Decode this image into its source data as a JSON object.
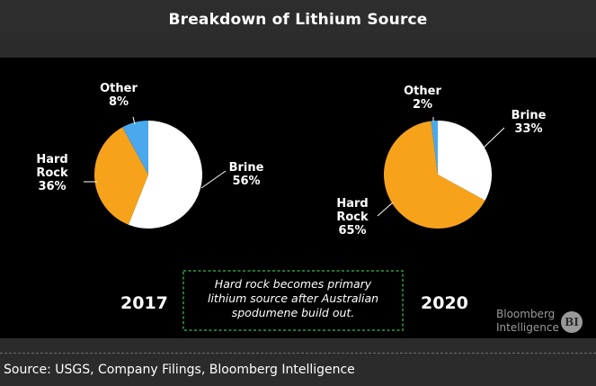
{
  "title": "Breakdown of Lithium Source",
  "source": "Source: USGS, Company Filings, Bloomberg Intelligence",
  "annotation": {
    "lines": [
      "Hard rock becomes primary",
      "lithium source after Australian",
      "spodumene build out."
    ]
  },
  "brand": {
    "line1": "Bloomberg",
    "line2": "Intelligence",
    "badge": "BI"
  },
  "colors": {
    "brine": "#ffffff",
    "hard_rock": "#f7a21b",
    "other": "#4aa8ec",
    "annotation_border": "#2ea043"
  },
  "chart_data": [
    {
      "type": "pie",
      "title": "2017",
      "categories": [
        "Brine",
        "Hard Rock",
        "Other"
      ],
      "values": [
        56,
        36,
        8
      ],
      "labels": {
        "brine": [
          "Brine",
          "56%"
        ],
        "hard_rock": [
          "Hard",
          "Rock",
          "36%"
        ],
        "other": [
          "Other",
          "8%"
        ]
      }
    },
    {
      "type": "pie",
      "title": "2020",
      "categories": [
        "Brine",
        "Hard Rock",
        "Other"
      ],
      "values": [
        33,
        65,
        2
      ],
      "labels": {
        "brine": [
          "Brine",
          "33%"
        ],
        "hard_rock": [
          "Hard",
          "Rock",
          "65%"
        ],
        "other": [
          "Other",
          "2%"
        ]
      }
    }
  ]
}
